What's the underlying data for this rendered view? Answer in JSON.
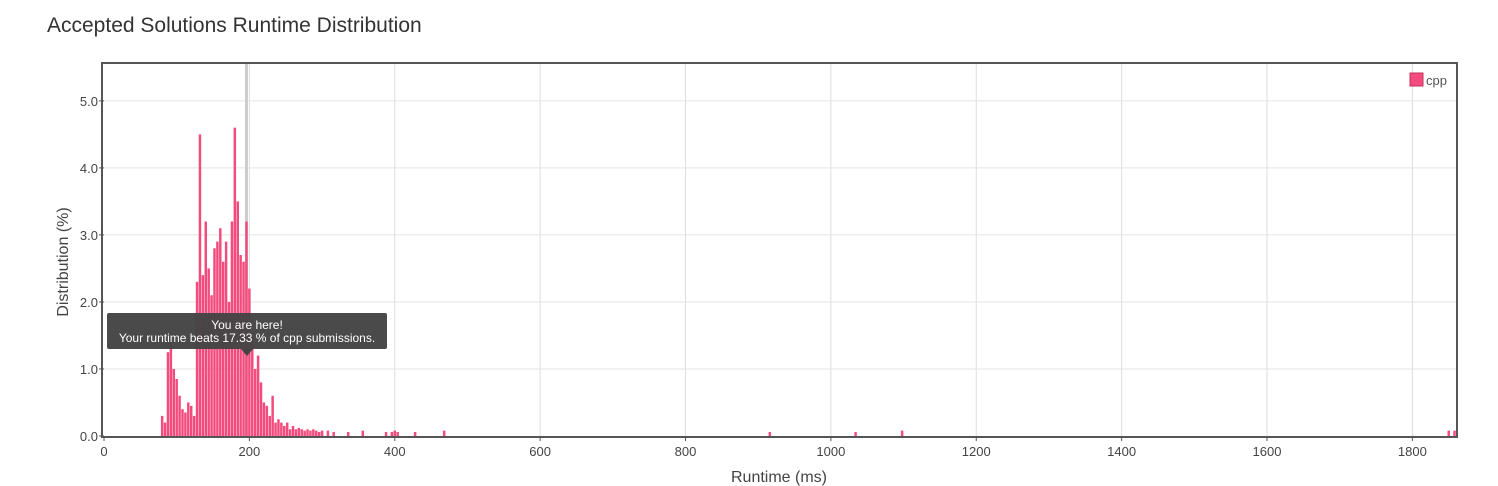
{
  "chart_data": {
    "type": "bar",
    "title": "Accepted Solutions Runtime Distribution",
    "xlabel": "Runtime (ms)",
    "ylabel": "Distribution (%)",
    "xlim": [
      0,
      1860
    ],
    "ylim": [
      0,
      5.55
    ],
    "x_ticks": [
      0,
      200,
      400,
      600,
      800,
      1000,
      1200,
      1400,
      1600,
      1800
    ],
    "y_ticks": [
      0.0,
      1.0,
      2.0,
      3.0,
      4.0,
      5.0
    ],
    "y_tick_labels": [
      "0.0",
      "1.0",
      "2.0",
      "3.0",
      "4.0",
      "5.0"
    ],
    "grid": true,
    "legend_position": "top-right",
    "series": [
      {
        "name": "cpp",
        "color": "#f34b7d",
        "x": [
          80,
          84,
          88,
          92,
          96,
          100,
          104,
          108,
          112,
          116,
          120,
          124,
          128,
          132,
          136,
          140,
          144,
          148,
          152,
          156,
          160,
          164,
          168,
          172,
          176,
          180,
          184,
          188,
          192,
          196,
          200,
          204,
          208,
          212,
          216,
          220,
          224,
          228,
          232,
          236,
          240,
          244,
          248,
          252,
          256,
          260,
          264,
          268,
          272,
          276,
          280,
          284,
          288,
          292,
          296,
          300,
          308,
          316,
          336,
          356,
          388,
          396,
          400,
          404,
          428,
          468,
          916,
          1034,
          1098,
          1850,
          1858
        ],
        "values": [
          0.3,
          0.2,
          1.25,
          1.5,
          1.0,
          0.85,
          0.6,
          0.4,
          0.35,
          0.5,
          0.45,
          0.3,
          2.3,
          4.5,
          2.4,
          3.2,
          2.5,
          2.1,
          2.8,
          2.9,
          3.1,
          2.6,
          2.9,
          2.0,
          3.2,
          4.6,
          3.5,
          2.7,
          2.6,
          3.2,
          2.2,
          1.5,
          1.0,
          1.2,
          0.8,
          0.5,
          0.45,
          0.3,
          0.6,
          0.2,
          0.25,
          0.2,
          0.15,
          0.2,
          0.1,
          0.15,
          0.1,
          0.12,
          0.1,
          0.08,
          0.1,
          0.08,
          0.1,
          0.08,
          0.06,
          0.08,
          0.08,
          0.06,
          0.06,
          0.08,
          0.06,
          0.06,
          0.08,
          0.06,
          0.06,
          0.08,
          0.06,
          0.06,
          0.08,
          0.08,
          0.08
        ]
      }
    ],
    "tooltip": {
      "line1": "You are here!",
      "line2": "Your runtime beats 17.33 % of cpp submissions.",
      "x": 196
    }
  }
}
